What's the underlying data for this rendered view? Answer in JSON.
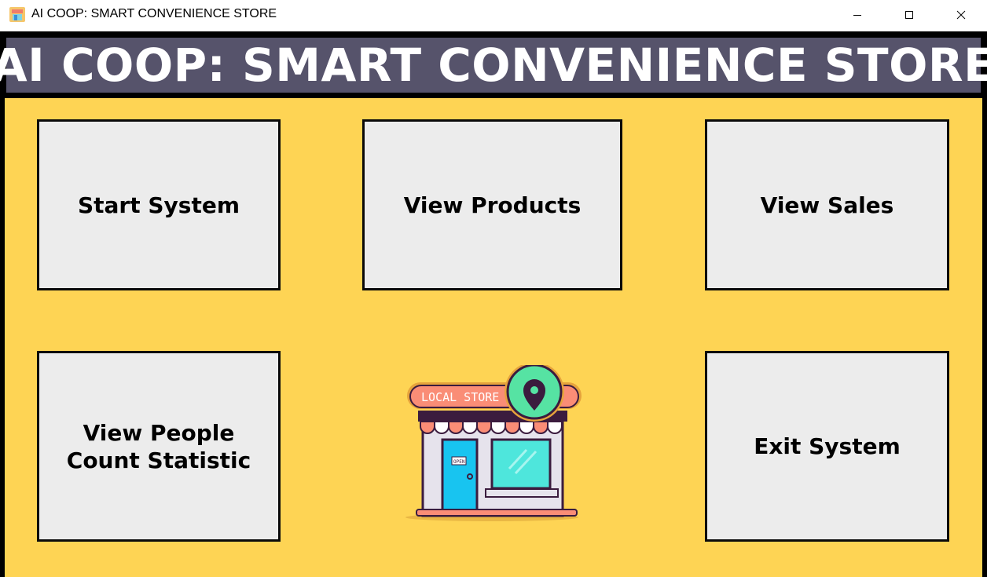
{
  "window": {
    "title": "AI COOP: SMART CONVENIENCE STORE",
    "controls": [
      "minimize",
      "maximize",
      "close"
    ]
  },
  "header": {
    "title": "AI COOP: SMART CONVENIENCE STORE"
  },
  "menu": {
    "start_system": "Start System",
    "view_products": "View Products",
    "view_sales": "View Sales",
    "view_people_line1": "View People",
    "view_people_line2": "Count Statistic",
    "exit_system": "Exit System"
  },
  "illustration": {
    "sign_text": "LOCAL STORE",
    "door_sign": "OPEN",
    "icon": "store-location-icon"
  },
  "colors": {
    "header_bg": "#56536b",
    "main_bg": "#fed454",
    "button_bg": "#ececec",
    "border": "#0a0a0a"
  }
}
